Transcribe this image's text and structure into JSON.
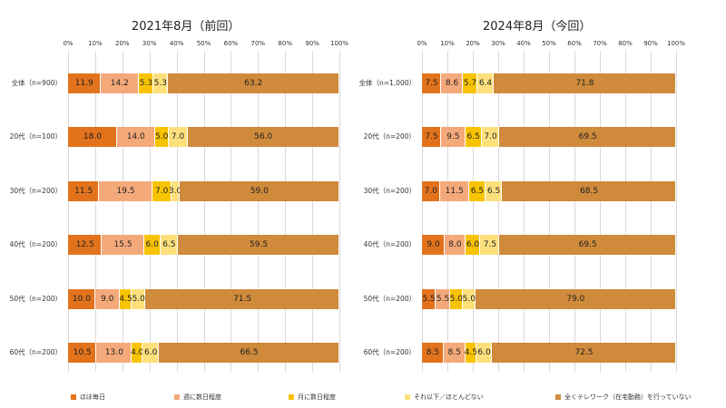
{
  "colors": {
    "daily": "#e2731c",
    "weekly": "#f4a97a",
    "monthly": "#f8c300",
    "rarely": "#fde07c",
    "none": "#cf8a3b"
  },
  "legend": [
    {
      "key": "daily",
      "label": "ほぼ毎日"
    },
    {
      "key": "weekly",
      "label": "週に数日程度"
    },
    {
      "key": "monthly",
      "label": "月に数日程度"
    },
    {
      "key": "rarely",
      "label": "それ以下／ほとんどない"
    },
    {
      "key": "none",
      "label": "全くテレワーク（在宅勤務）を行っていない"
    }
  ],
  "chart_data": [
    {
      "type": "bar",
      "orientation": "horizontal",
      "stacked": true,
      "title": "2021年8月（前回）",
      "xlim": [
        0,
        100
      ],
      "tick_labels": [
        "0%",
        "10%",
        "20%",
        "30%",
        "40%",
        "50%",
        "60%",
        "70%",
        "80%",
        "90%",
        "100%"
      ],
      "grid": true,
      "legend_position": "bottom",
      "categories": [
        "全体（n=900）",
        "20代（n=100）",
        "30代（n=200）",
        "40代（n=200）",
        "50代（n=200）",
        "60代（n=200）"
      ],
      "series": [
        {
          "name": "ほぼ毎日",
          "key": "daily",
          "values": [
            11.9,
            18.0,
            11.5,
            12.5,
            10.0,
            10.5
          ]
        },
        {
          "name": "週に数日程度",
          "key": "weekly",
          "values": [
            14.2,
            14.0,
            19.5,
            15.5,
            9.0,
            13.0
          ]
        },
        {
          "name": "月に数日程度",
          "key": "monthly",
          "values": [
            5.3,
            5.0,
            7.0,
            6.0,
            4.5,
            4.0
          ]
        },
        {
          "name": "それ以下／ほとんどない",
          "key": "rarely",
          "values": [
            5.3,
            7.0,
            3.0,
            6.5,
            5.0,
            6.0
          ]
        },
        {
          "name": "全くテレワーク（在宅勤務）を行っていない",
          "key": "none",
          "values": [
            63.2,
            56.0,
            59.0,
            59.5,
            71.5,
            66.5
          ]
        }
      ]
    },
    {
      "type": "bar",
      "orientation": "horizontal",
      "stacked": true,
      "title": "2024年8月（今回）",
      "xlim": [
        0,
        100
      ],
      "tick_labels": [
        "0%",
        "10%",
        "20%",
        "30%",
        "40%",
        "50%",
        "60%",
        "70%",
        "80%",
        "90%",
        "100%"
      ],
      "grid": true,
      "legend_position": "bottom",
      "categories": [
        "全体（n=1,000）",
        "20代（n=200）",
        "30代（n=200）",
        "40代（n=200）",
        "50代（n=200）",
        "60代（n=200）"
      ],
      "series": [
        {
          "name": "ほぼ毎日",
          "key": "daily",
          "values": [
            7.5,
            7.5,
            7.0,
            9.0,
            5.5,
            8.5
          ]
        },
        {
          "name": "週に数日程度",
          "key": "weekly",
          "values": [
            8.6,
            9.5,
            11.5,
            8.0,
            5.5,
            8.5
          ]
        },
        {
          "name": "月に数日程度",
          "key": "monthly",
          "values": [
            5.7,
            6.5,
            6.5,
            6.0,
            5.0,
            4.5
          ]
        },
        {
          "name": "それ以下／ほとんどない",
          "key": "rarely",
          "values": [
            6.4,
            7.0,
            6.5,
            7.5,
            5.0,
            6.0
          ]
        },
        {
          "name": "全くテレワーク（在宅勤務）を行っていない",
          "key": "none",
          "values": [
            71.8,
            69.5,
            68.5,
            69.5,
            79.0,
            72.5
          ]
        }
      ]
    }
  ]
}
